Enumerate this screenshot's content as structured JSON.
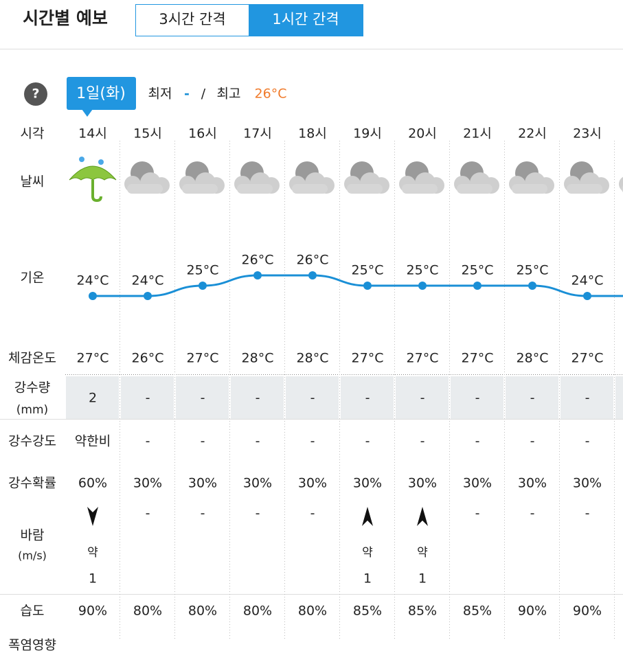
{
  "header": {
    "title": "시간별 예보",
    "tabs": [
      "3시간 간격",
      "1시간 간격"
    ]
  },
  "help": "?",
  "date": {
    "label": "1일(화)",
    "min_label": "최저",
    "min_value": "-",
    "separator": "/",
    "max_label": "최고",
    "max_value": "26°C"
  },
  "row_labels": {
    "time": "시각",
    "weather": "날씨",
    "temperature": "기온",
    "feels_like": "체감온도",
    "precip_amount": [
      "강수량",
      "(mm)"
    ],
    "precip_intensity": "강수강도",
    "precip_prob": "강수확률",
    "wind": [
      "바람",
      "(m/s)"
    ],
    "humidity": "습도",
    "heat": "폭염영향"
  },
  "hours": [
    "14시",
    "15시",
    "16시",
    "17시",
    "18시",
    "19시",
    "20시",
    "21시",
    "22시",
    "23시"
  ],
  "chart_data": {
    "type": "line",
    "color": "#1a8fd6",
    "values": [
      24,
      24,
      25,
      26,
      26,
      25,
      25,
      25,
      25,
      24
    ],
    "value_labels": [
      "24°C",
      "24°C",
      "25°C",
      "26°C",
      "26°C",
      "25°C",
      "25°C",
      "25°C",
      "25°C",
      "24°C"
    ]
  },
  "feels_like": [
    "27°C",
    "26°C",
    "27°C",
    "28°C",
    "28°C",
    "27°C",
    "27°C",
    "27°C",
    "28°C",
    "27°C"
  ],
  "precip_amount": [
    "2",
    "-",
    "-",
    "-",
    "-",
    "-",
    "-",
    "-",
    "-",
    "-"
  ],
  "precip_intensity": [
    "약한비",
    "-",
    "-",
    "-",
    "-",
    "-",
    "-",
    "-",
    "-",
    "-"
  ],
  "precip_prob": [
    "60%",
    "30%",
    "30%",
    "30%",
    "30%",
    "30%",
    "30%",
    "30%",
    "30%",
    "30%"
  ],
  "wind": [
    {
      "dir": "down",
      "strength": "약",
      "speed": "1"
    },
    "-",
    "-",
    "-",
    "-",
    {
      "dir": "up",
      "strength": "약",
      "speed": "1"
    },
    {
      "dir": "up",
      "strength": "약",
      "speed": "1"
    },
    "-",
    "-",
    "-"
  ],
  "humidity": [
    "90%",
    "80%",
    "80%",
    "80%",
    "80%",
    "85%",
    "85%",
    "85%",
    "90%",
    "90%"
  ]
}
